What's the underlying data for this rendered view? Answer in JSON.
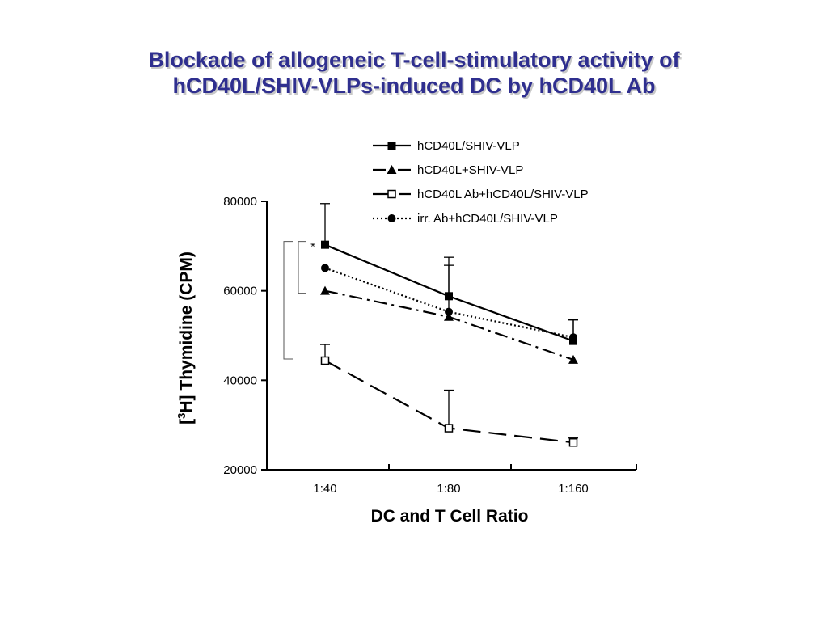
{
  "chart_data": {
    "type": "line",
    "title_lines": [
      "Blockade of allogeneic T-cell-stimulatory activity of",
      "hCD40L/SHIV-VLPs-induced DC by hCD40L Ab"
    ],
    "xlabel": "DC and T Cell Ratio",
    "ylabel_prefix": "[",
    "ylabel_sup": "3",
    "ylabel_rest": "H] Thymidine (CPM)",
    "categories": [
      "1:40",
      "1:80",
      "1:160"
    ],
    "ylim": [
      20000,
      80000
    ],
    "yticks": [
      20000,
      40000,
      60000,
      80000
    ],
    "grid": false,
    "legend_position": "top-right",
    "significance_mark": "*",
    "series": [
      {
        "name": "hCD40L/SHIV-VLP",
        "values": [
          70300,
          58800,
          48800
        ],
        "error": [
          9200,
          8700,
          4700
        ],
        "marker": "square-filled",
        "line_style": "solid",
        "color": "#000000"
      },
      {
        "name": "hCD40L+SHIV-VLP",
        "values": [
          60000,
          54200,
          44600
        ],
        "error": [
          0,
          0,
          0
        ],
        "marker": "triangle-filled",
        "line_style": "dash-dot",
        "color": "#000000"
      },
      {
        "name": "hCD40L Ab+hCD40L/SHIV-VLP",
        "values": [
          44400,
          29300,
          26100
        ],
        "error": [
          3600,
          8500,
          1000
        ],
        "marker": "square-open",
        "line_style": "long-dash",
        "color": "#000000"
      },
      {
        "name": "irr. Ab+hCD40L/SHIV-VLP",
        "values": [
          65100,
          55300,
          49600
        ],
        "error": [
          0,
          10400,
          3900
        ],
        "marker": "circle-filled",
        "line_style": "dotted",
        "color": "#000000"
      }
    ]
  }
}
